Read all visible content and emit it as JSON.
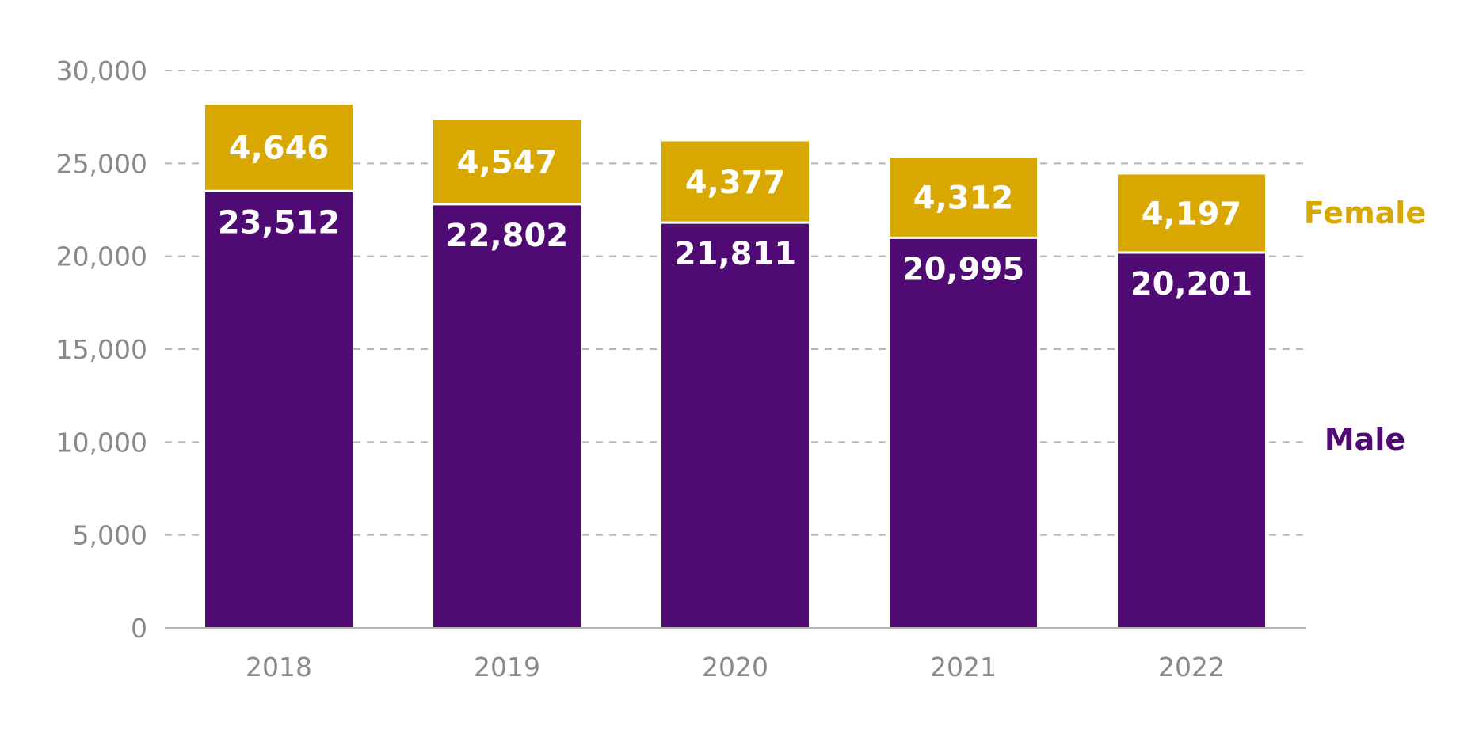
{
  "chart_data": {
    "type": "bar",
    "stacked": true,
    "categories": [
      "2018",
      "2019",
      "2020",
      "2021",
      "2022"
    ],
    "series": [
      {
        "name": "Male",
        "color": "#500a73",
        "values": [
          23512,
          22802,
          21811,
          20995,
          20201
        ]
      },
      {
        "name": "Female",
        "color": "#d9a800",
        "values": [
          4646,
          4547,
          4377,
          4312,
          4197
        ]
      }
    ],
    "value_labels": {
      "Male": [
        "23,512",
        "22,802",
        "21,811",
        "20,995",
        "20,201"
      ],
      "Female": [
        "4,646",
        "4,547",
        "4,377",
        "4,312",
        "4,197"
      ]
    },
    "ylim": [
      0,
      30000
    ],
    "yticks": [
      0,
      5000,
      10000,
      15000,
      20000,
      25000,
      30000
    ],
    "ytick_labels": [
      "0",
      "5,000",
      "10,000",
      "15,000",
      "20,000",
      "25,000",
      "30,000"
    ],
    "title": "",
    "xlabel": "",
    "ylabel": "",
    "grid": "horizontal-dashed",
    "legend": "right, beside bars"
  }
}
